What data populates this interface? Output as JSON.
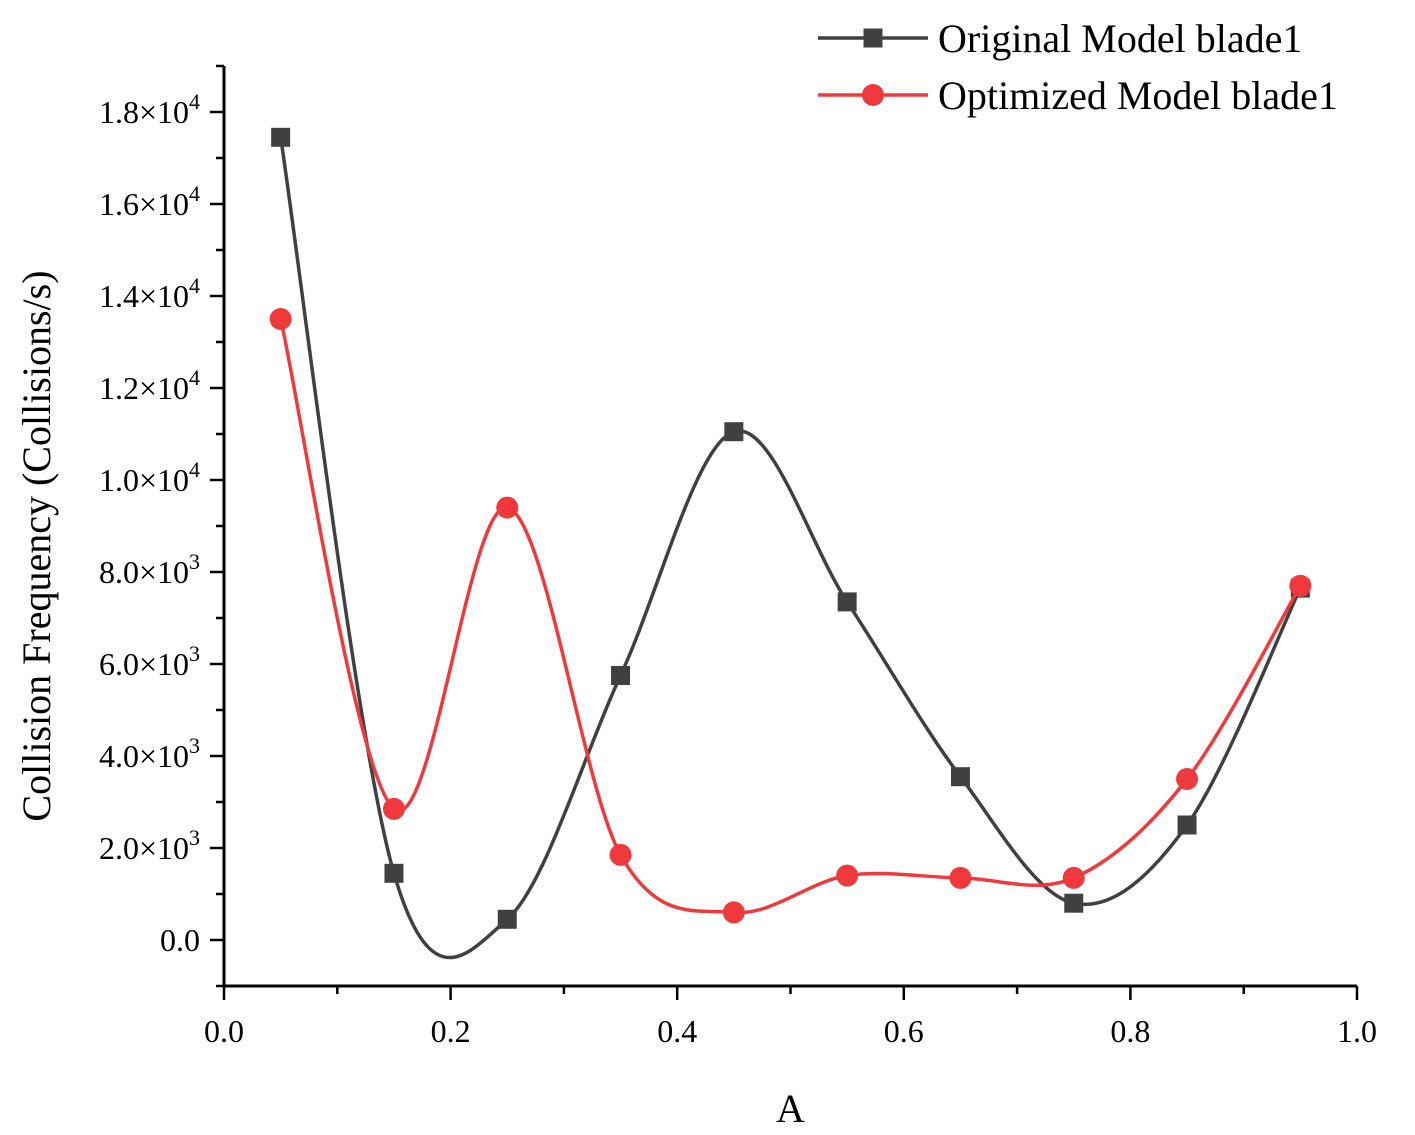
{
  "chart_data": {
    "type": "line",
    "title": "",
    "xlabel": "A",
    "ylabel": "Collision Frequency (Collisions/s)",
    "xlim": [
      0.0,
      1.0
    ],
    "ylim": [
      -1000,
      19000
    ],
    "x_ticks": [
      0.0,
      0.2,
      0.4,
      0.6,
      0.8,
      1.0
    ],
    "x_tick_labels": [
      "0.0",
      "0.2",
      "0.4",
      "0.6",
      "0.8",
      "1.0"
    ],
    "y_ticks": [
      {
        "value": 0,
        "mantissa": "0.0",
        "exponent": ""
      },
      {
        "value": 2000,
        "mantissa": "2.0",
        "exponent": "3"
      },
      {
        "value": 4000,
        "mantissa": "4.0",
        "exponent": "3"
      },
      {
        "value": 6000,
        "mantissa": "6.0",
        "exponent": "3"
      },
      {
        "value": 8000,
        "mantissa": "8.0",
        "exponent": "3"
      },
      {
        "value": 10000,
        "mantissa": "1.0",
        "exponent": "4"
      },
      {
        "value": 12000,
        "mantissa": "1.2",
        "exponent": "4"
      },
      {
        "value": 14000,
        "mantissa": "1.4",
        "exponent": "4"
      },
      {
        "value": 16000,
        "mantissa": "1.6",
        "exponent": "4"
      },
      {
        "value": 18000,
        "mantissa": "1.8",
        "exponent": "4"
      }
    ],
    "grid": false,
    "legend_position": "top-right",
    "x": [
      0.05,
      0.15,
      0.25,
      0.35,
      0.45,
      0.55,
      0.65,
      0.75,
      0.85,
      0.95
    ],
    "series": [
      {
        "name": "Original Model blade1",
        "color": "#404040",
        "marker": "square",
        "values": [
          17450,
          1450,
          450,
          5750,
          11050,
          7350,
          3550,
          800,
          2500,
          7650
        ]
      },
      {
        "name": "Optimized Model blade1",
        "color": "#f0393c",
        "marker": "circle",
        "values": [
          13500,
          2850,
          9400,
          1850,
          600,
          1400,
          1350,
          1350,
          3500,
          7700
        ]
      }
    ]
  }
}
